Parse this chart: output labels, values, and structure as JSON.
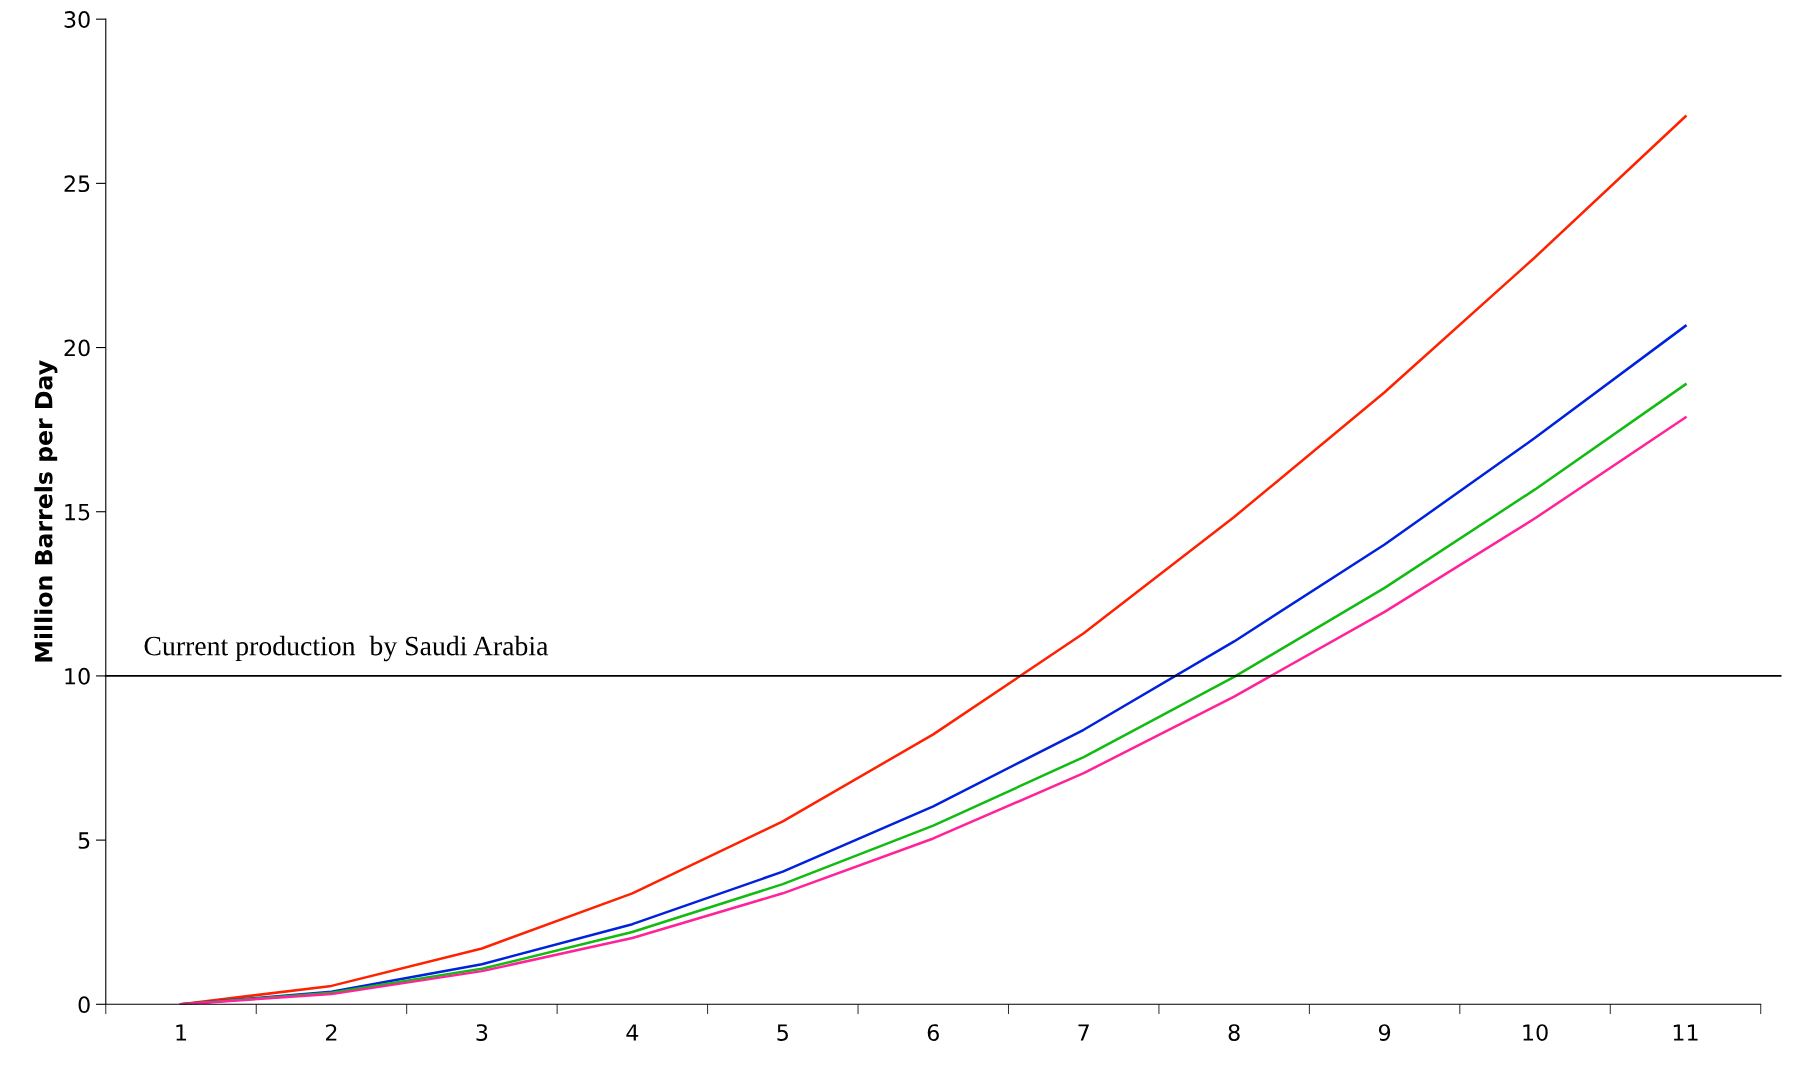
{
  "chart_data": {
    "type": "line",
    "ylabel": "Million Barrels per Day",
    "categories": [
      "1",
      "2",
      "3",
      "4",
      "5",
      "6",
      "7",
      "8",
      "9",
      "10",
      "11"
    ],
    "series": [
      {
        "color": "#ff2200",
        "values": [
          0,
          0.56,
          1.7,
          3.38,
          5.57,
          8.22,
          11.3,
          14.84,
          18.64,
          22.75,
          27.04
        ]
      },
      {
        "color": "#0022dd",
        "values": [
          0,
          0.38,
          1.22,
          2.44,
          4.04,
          6.03,
          8.36,
          11.05,
          14.0,
          17.25,
          20.66
        ]
      },
      {
        "color": "#11bb11",
        "values": [
          0,
          0.35,
          1.08,
          2.2,
          3.66,
          5.44,
          7.53,
          9.97,
          12.68,
          15.68,
          18.88
        ]
      },
      {
        "color": "#ff2299",
        "values": [
          0,
          0.31,
          1.01,
          2.02,
          3.38,
          5.05,
          7.04,
          9.37,
          11.95,
          14.8,
          17.87
        ]
      }
    ],
    "ylim": [
      0,
      30
    ],
    "yticks": [
      0,
      5,
      10,
      15,
      20,
      25,
      30
    ],
    "grid": false,
    "legend": false,
    "marker": "none",
    "line_style": "solid",
    "ref_lines": [
      {
        "axis": "y",
        "value": 10,
        "label": "Current production  by Saudi Arabia",
        "color": "#000000"
      }
    ]
  }
}
